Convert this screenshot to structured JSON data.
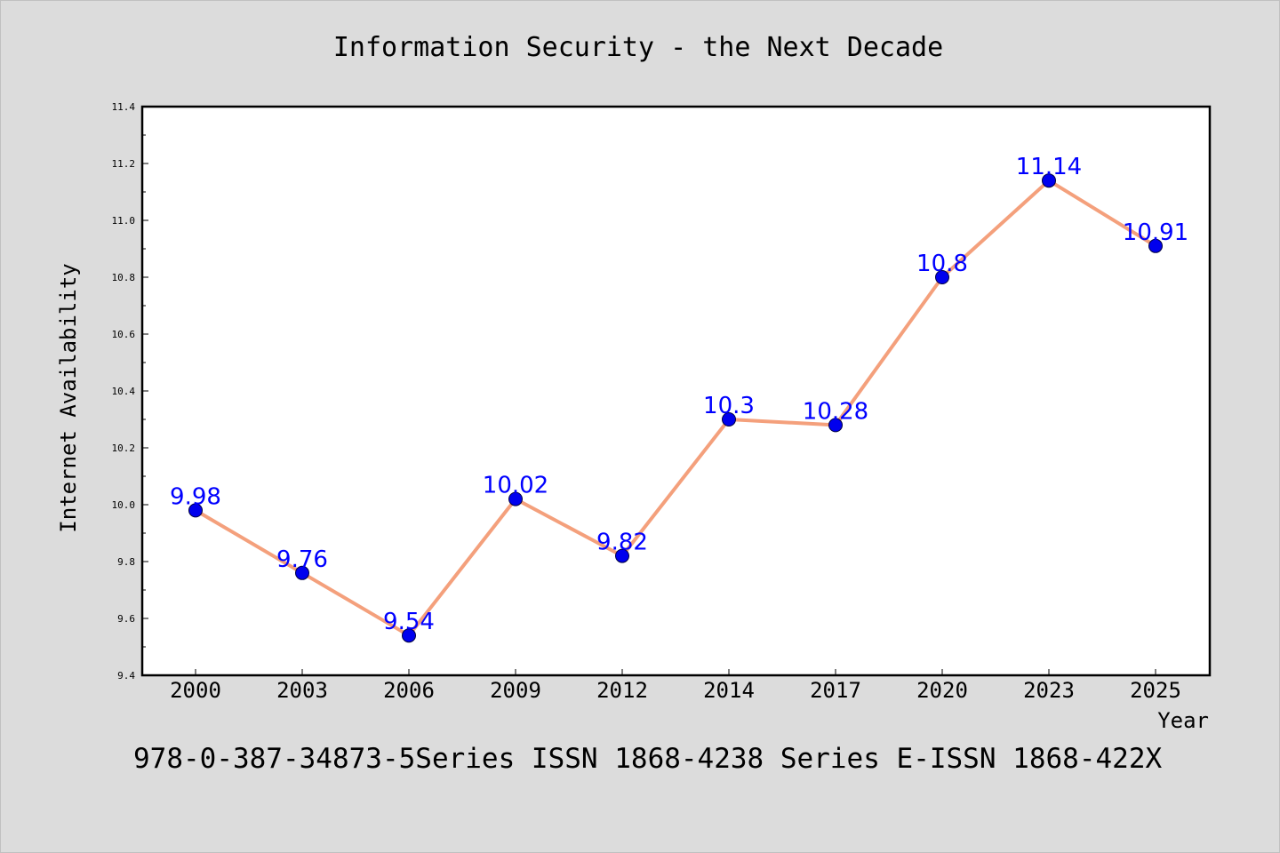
{
  "chart_data": {
    "type": "line",
    "title": "Information Security - the Next Decade",
    "xlabel": "Year",
    "ylabel": "Internet Availability",
    "footer": "978-0-387-34873-5Series ISSN 1868-4238 Series E-ISSN 1868-422X",
    "categories": [
      "2000",
      "2003",
      "2006",
      "2009",
      "2012",
      "2014",
      "2017",
      "2020",
      "2023",
      "2025"
    ],
    "series": [
      {
        "values": [
          9.98,
          9.76,
          9.54,
          10.02,
          9.82,
          10.3,
          10.28,
          10.8,
          11.14,
          10.91
        ],
        "labels": [
          "9.98",
          "9.76",
          "9.54",
          "10.02",
          "9.82",
          "10.3",
          "10.28",
          "10.8",
          "11.14",
          "10.91"
        ],
        "line_color": "#f4a07c",
        "marker_color": "#0000ee"
      }
    ],
    "ylim": [
      9.4,
      11.4
    ],
    "yticks": [
      "9.4",
      "9.6",
      "9.8",
      "10.0",
      "10.2",
      "10.4",
      "10.6",
      "10.8",
      "11.0",
      "11.2",
      "11.4"
    ],
    "grid": false,
    "legend": "none",
    "label_color": "#0000ff"
  }
}
